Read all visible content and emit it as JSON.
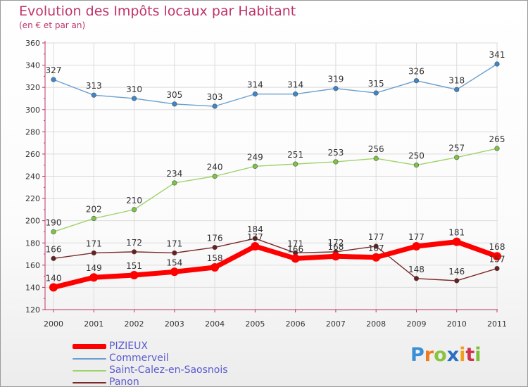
{
  "title": "Evolution des Impôts locaux par Habitant",
  "subtitle": "(en € et par an)",
  "logo_text": "Proxiti",
  "chart_data": {
    "type": "line",
    "title": "Evolution des Impôts locaux par Habitant",
    "subtitle": "(en € et par an)",
    "xlabel": "",
    "ylabel": "",
    "x": [
      "2000",
      "2001",
      "2002",
      "2003",
      "2004",
      "2005",
      "2006",
      "2007",
      "2008",
      "2009",
      "2010",
      "2011"
    ],
    "ylim": [
      120,
      360
    ],
    "yticks": [
      120,
      140,
      160,
      180,
      200,
      220,
      240,
      260,
      280,
      300,
      320,
      340,
      360
    ],
    "grid": true,
    "legend_position": "bottom-left",
    "series": [
      {
        "name": "Commerveil",
        "color": "#6a9fcf",
        "marker": "#3d86c8",
        "values": [
          327,
          313,
          310,
          305,
          303,
          314,
          314,
          319,
          315,
          326,
          318,
          341
        ]
      },
      {
        "name": "Saint-Calez-en-Saosnois",
        "color": "#9fd36a",
        "marker": "#7cc444",
        "values": [
          190,
          202,
          210,
          234,
          240,
          249,
          251,
          253,
          256,
          250,
          257,
          265
        ]
      },
      {
        "name": "Panon",
        "color": "#7a2a2a",
        "marker": "#6a1e1e",
        "values": [
          166,
          171,
          172,
          171,
          176,
          184,
          171,
          172,
          177,
          148,
          146,
          157
        ]
      },
      {
        "name": "PIZIEUX",
        "color": "#ff0000",
        "marker": "#ff0000",
        "values": [
          140,
          149,
          151,
          154,
          158,
          177,
          166,
          168,
          167,
          177,
          181,
          168
        ]
      }
    ]
  },
  "legend": [
    {
      "name": "PIZIEUX",
      "color": "#ff0000"
    },
    {
      "name": "Commerveil",
      "color": "#6a9fcf"
    },
    {
      "name": "Saint-Calez-en-Saosnois",
      "color": "#9fd36a"
    },
    {
      "name": "Panon",
      "color": "#7a2a2a"
    }
  ]
}
